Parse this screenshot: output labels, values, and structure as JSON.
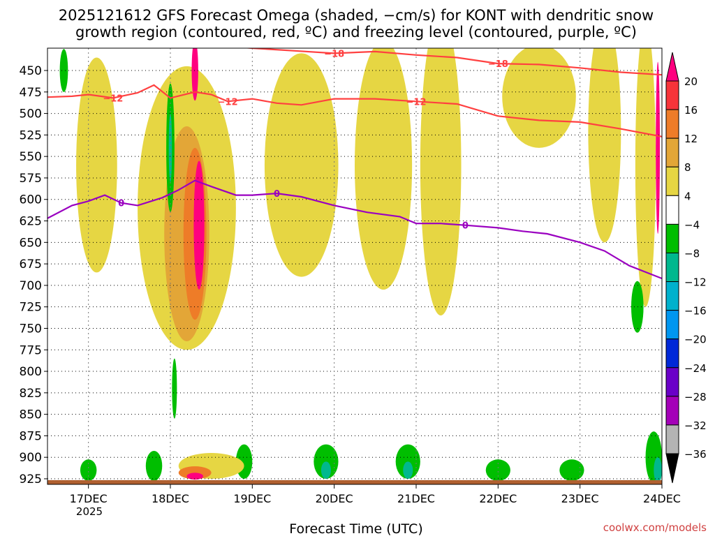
{
  "chart_data": {
    "type": "heatmap",
    "title_line1": "2025121612 GFS Forecast Omega (shaded, −cm/s) for KONT with dendritic snow",
    "title_line2": "growth region (contoured, red, ºC) and freezing level (contoured, purple, ºC)",
    "xlabel": "Forecast Time (UTC)",
    "credit": "coolwx.com/models",
    "year_label": "2025",
    "x_range": [
      16.5,
      24.0
    ],
    "x_ticks": [
      {
        "value": 17,
        "label": "17DEC"
      },
      {
        "value": 18,
        "label": "18DEC"
      },
      {
        "value": 19,
        "label": "19DEC"
      },
      {
        "value": 20,
        "label": "20DEC"
      },
      {
        "value": 21,
        "label": "21DEC"
      },
      {
        "value": 22,
        "label": "22DEC"
      },
      {
        "value": 23,
        "label": "23DEC"
      },
      {
        "value": 24,
        "label": "24DEC"
      }
    ],
    "y_range": [
      415,
      935
    ],
    "y_ticks": [
      450,
      475,
      500,
      525,
      550,
      575,
      600,
      625,
      650,
      675,
      700,
      725,
      750,
      775,
      800,
      825,
      850,
      875,
      900,
      925
    ],
    "colorbar": {
      "labels": [
        "20",
        "16",
        "12",
        "8",
        "4",
        "−4",
        "−8",
        "−12",
        "−16",
        "−20",
        "−24",
        "−28",
        "−32",
        "−36"
      ],
      "colors": [
        "#ff007f",
        "#f7343a",
        "#ee7c28",
        "#e3a637",
        "#e6d643",
        "#ffffff",
        "#00be00",
        "#00b88e",
        "#00b1cd",
        "#0096f0",
        "#0028d8",
        "#6a00c8",
        "#a400b8",
        "#b4b4b4",
        "#000000"
      ]
    },
    "omega_regions": [
      {
        "level": "warm4",
        "cx": 18.2,
        "p": 610,
        "w": 1.2,
        "h": 330
      },
      {
        "level": "warm4",
        "cx": 19.6,
        "p": 560,
        "w": 0.9,
        "h": 260
      },
      {
        "level": "warm4",
        "cx": 20.6,
        "p": 560,
        "w": 0.7,
        "h": 290
      },
      {
        "level": "warm4",
        "cx": 21.3,
        "p": 560,
        "w": 0.5,
        "h": 350
      },
      {
        "level": "warm4",
        "cx": 22.5,
        "p": 480,
        "w": 0.9,
        "h": 120
      },
      {
        "level": "warm4",
        "cx": 23.3,
        "p": 520,
        "w": 0.4,
        "h": 260
      },
      {
        "level": "warm4",
        "cx": 23.8,
        "p": 560,
        "w": 0.25,
        "h": 330
      },
      {
        "level": "warm4",
        "cx": 17.1,
        "p": 560,
        "w": 0.5,
        "h": 250
      },
      {
        "level": "warm8",
        "cx": 18.2,
        "p": 640,
        "w": 0.55,
        "h": 250
      },
      {
        "level": "warm12",
        "cx": 18.3,
        "p": 640,
        "w": 0.28,
        "h": 200
      },
      {
        "level": "warm20",
        "cx": 18.35,
        "p": 630,
        "w": 0.13,
        "h": 150
      },
      {
        "level": "warm20",
        "cx": 18.3,
        "p": 450,
        "w": 0.08,
        "h": 70
      },
      {
        "level": "warm20",
        "cx": 23.95,
        "p": 540,
        "w": 0.05,
        "h": 200
      },
      {
        "level": "cool4",
        "cx": 18.0,
        "p": 540,
        "w": 0.1,
        "h": 150
      },
      {
        "level": "cool4",
        "cx": 18.05,
        "p": 820,
        "w": 0.06,
        "h": 70
      },
      {
        "level": "cool4",
        "cx": 16.7,
        "p": 450,
        "w": 0.1,
        "h": 50
      },
      {
        "level": "cool4",
        "cx": 23.7,
        "p": 725,
        "w": 0.15,
        "h": 60
      },
      {
        "level": "cool4",
        "cx": 23.9,
        "p": 900,
        "w": 0.2,
        "h": 60
      },
      {
        "level": "cool4",
        "cx": 19.9,
        "p": 905,
        "w": 0.3,
        "h": 40
      },
      {
        "level": "cool4",
        "cx": 20.9,
        "p": 905,
        "w": 0.3,
        "h": 40
      },
      {
        "level": "cool4",
        "cx": 22.0,
        "p": 915,
        "w": 0.3,
        "h": 25
      },
      {
        "level": "cool4",
        "cx": 22.9,
        "p": 915,
        "w": 0.3,
        "h": 25
      },
      {
        "level": "cool4",
        "cx": 17.0,
        "p": 915,
        "w": 0.2,
        "h": 25
      },
      {
        "level": "cool4",
        "cx": 17.8,
        "p": 910,
        "w": 0.2,
        "h": 35
      },
      {
        "level": "cool4",
        "cx": 18.9,
        "p": 905,
        "w": 0.2,
        "h": 40
      },
      {
        "level": "cool8",
        "cx": 18.0,
        "p": 540,
        "w": 0.04,
        "h": 80
      },
      {
        "level": "cool8",
        "cx": 19.9,
        "p": 915,
        "w": 0.12,
        "h": 20
      },
      {
        "level": "cool8",
        "cx": 20.9,
        "p": 915,
        "w": 0.12,
        "h": 20
      },
      {
        "level": "cool8",
        "cx": 23.95,
        "p": 915,
        "w": 0.1,
        "h": 30
      },
      {
        "level": "warm4",
        "cx": 18.5,
        "p": 910,
        "w": 0.8,
        "h": 30
      },
      {
        "level": "warm12",
        "cx": 18.3,
        "p": 918,
        "w": 0.4,
        "h": 15
      },
      {
        "level": "warm20",
        "cx": 18.3,
        "p": 922,
        "w": 0.2,
        "h": 8
      }
    ],
    "contours_dgz": [
      {
        "label": "−18",
        "points": [
          [
            16.5,
            422
          ],
          [
            17.0,
            418
          ],
          [
            17.5,
            419
          ],
          [
            18.0,
            418
          ],
          [
            18.5,
            420
          ],
          [
            19.0,
            424
          ],
          [
            19.5,
            427
          ],
          [
            20.0,
            430
          ],
          [
            20.5,
            428
          ],
          [
            21.0,
            432
          ],
          [
            21.5,
            435
          ],
          [
            22.0,
            442
          ],
          [
            22.5,
            443
          ],
          [
            23.0,
            447
          ],
          [
            23.5,
            452
          ],
          [
            24.0,
            455
          ]
        ]
      },
      {
        "label": "−12",
        "points": [
          [
            16.5,
            481
          ],
          [
            16.8,
            480
          ],
          [
            17.0,
            478
          ],
          [
            17.3,
            482
          ],
          [
            17.6,
            476
          ],
          [
            17.8,
            467
          ],
          [
            18.0,
            482
          ],
          [
            18.3,
            475
          ],
          [
            18.5,
            478
          ],
          [
            18.7,
            486
          ],
          [
            19.0,
            483
          ],
          [
            19.3,
            488
          ],
          [
            19.6,
            490
          ],
          [
            20.0,
            483
          ],
          [
            20.5,
            483
          ],
          [
            21.0,
            486
          ],
          [
            21.5,
            489
          ],
          [
            22.0,
            503
          ],
          [
            22.5,
            508
          ],
          [
            23.0,
            510
          ],
          [
            23.5,
            518
          ],
          [
            24.0,
            527
          ]
        ]
      }
    ],
    "contour_freezing": {
      "label": "0",
      "points": [
        [
          16.5,
          622
        ],
        [
          16.8,
          607
        ],
        [
          17.0,
          602
        ],
        [
          17.2,
          595
        ],
        [
          17.4,
          604
        ],
        [
          17.6,
          607
        ],
        [
          17.9,
          598
        ],
        [
          18.1,
          589
        ],
        [
          18.3,
          578
        ],
        [
          18.5,
          585
        ],
        [
          18.8,
          595
        ],
        [
          19.0,
          595
        ],
        [
          19.3,
          593
        ],
        [
          19.6,
          597
        ],
        [
          20.0,
          607
        ],
        [
          20.4,
          615
        ],
        [
          20.8,
          620
        ],
        [
          21.0,
          628
        ],
        [
          21.3,
          628
        ],
        [
          21.6,
          630
        ],
        [
          22.0,
          633
        ],
        [
          22.3,
          637
        ],
        [
          22.6,
          640
        ],
        [
          23.0,
          650
        ],
        [
          23.3,
          660
        ],
        [
          23.6,
          677
        ],
        [
          24.0,
          692
        ]
      ]
    }
  }
}
